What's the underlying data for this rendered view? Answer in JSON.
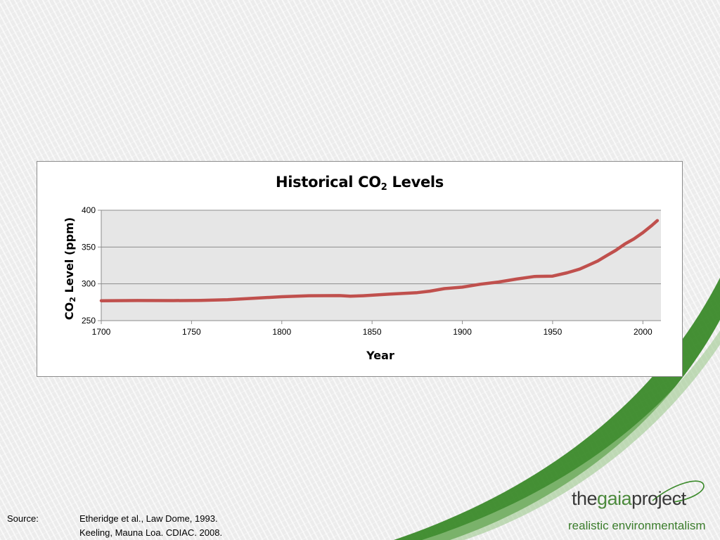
{
  "slide": {
    "source_label": "Source:",
    "source_lines": [
      "Etheridge et al.,  Law Dome,  1993.",
      "Keeling, Mauna Loa. CDIAC. 2008."
    ],
    "logo": {
      "part1": "the",
      "part2": "gaia",
      "part3": "project",
      "tagline": "realistic environmentalism"
    },
    "colors": {
      "accent_green": "#3b8a2a",
      "series_red": "#c0504d",
      "plot_bg": "#e6e6e6"
    }
  },
  "chart_data": {
    "type": "line",
    "title": {
      "prefix": "Historical CO",
      "subscript": "2",
      "suffix": " Levels"
    },
    "xlabel": "Year",
    "ylabel": {
      "prefix": "CO",
      "subscript": "2",
      "suffix": " Level (ppm)"
    },
    "xlim": [
      1700,
      2010
    ],
    "ylim": [
      250,
      400
    ],
    "xticks": [
      "1700",
      "1750",
      "1800",
      "1850",
      "1900",
      "1950",
      "2000"
    ],
    "yticks": [
      "250",
      "300",
      "350",
      "400"
    ],
    "grid": "horizontal",
    "legend": "none",
    "series": [
      {
        "color": "#c0504d",
        "x": [
          1700,
          1720,
          1740,
          1755,
          1770,
          1785,
          1800,
          1815,
          1832,
          1838,
          1845,
          1860,
          1875,
          1882,
          1890,
          1900,
          1910,
          1920,
          1930,
          1940,
          1950,
          1958,
          1965,
          1970,
          1975,
          1980,
          1985,
          1990,
          1995,
          2000,
          2005,
          2008
        ],
        "y": [
          277,
          277.3,
          277.2,
          277.5,
          278.5,
          280.5,
          282.5,
          283.8,
          284,
          283.2,
          283.8,
          286,
          288,
          290,
          293.5,
          295.5,
          299.5,
          302.5,
          306.5,
          310,
          310.5,
          315,
          320,
          325.5,
          331,
          338.5,
          345.5,
          354,
          361,
          369.5,
          379.5,
          386
        ]
      }
    ]
  }
}
